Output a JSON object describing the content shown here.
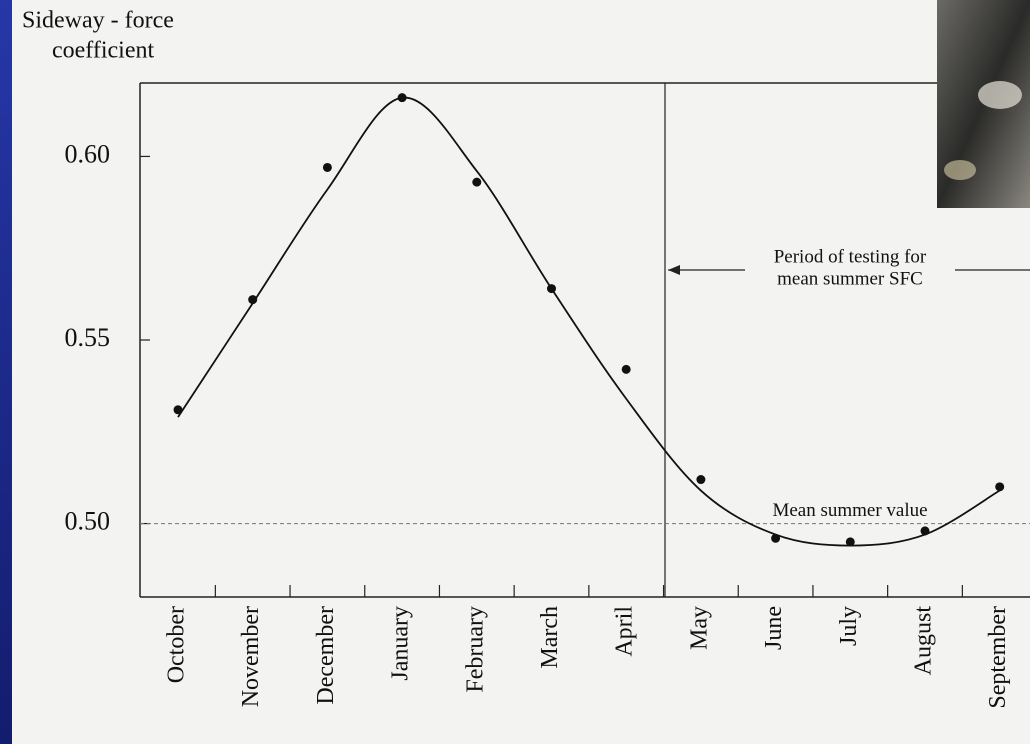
{
  "chart_data": {
    "type": "line",
    "ylabel_lines": [
      "Sideway - force",
      "coefficient"
    ],
    "categories": [
      "October",
      "November",
      "December",
      "January",
      "February",
      "March",
      "April",
      "May",
      "June",
      "July",
      "August",
      "September"
    ],
    "values": [
      0.531,
      0.561,
      0.597,
      0.616,
      0.593,
      0.564,
      0.542,
      0.512,
      0.496,
      0.495,
      0.498,
      0.51
    ],
    "fit_values": [
      0.529,
      0.56,
      0.591,
      0.616,
      0.596,
      0.564,
      0.534,
      0.509,
      0.497,
      0.494,
      0.497,
      0.509
    ],
    "color": "#111111",
    "ylim": [
      0.48,
      0.62
    ],
    "yticks": [
      {
        "value": 0.5,
        "label": "0.50"
      },
      0.55,
      {
        "value": 0.6,
        "label": "0.60"
      }
    ],
    "reference_line": {
      "value": 0.5,
      "label": "Mean summer value"
    },
    "period_annotation": [
      "Period of testing  for",
      "mean summer SFC"
    ]
  }
}
